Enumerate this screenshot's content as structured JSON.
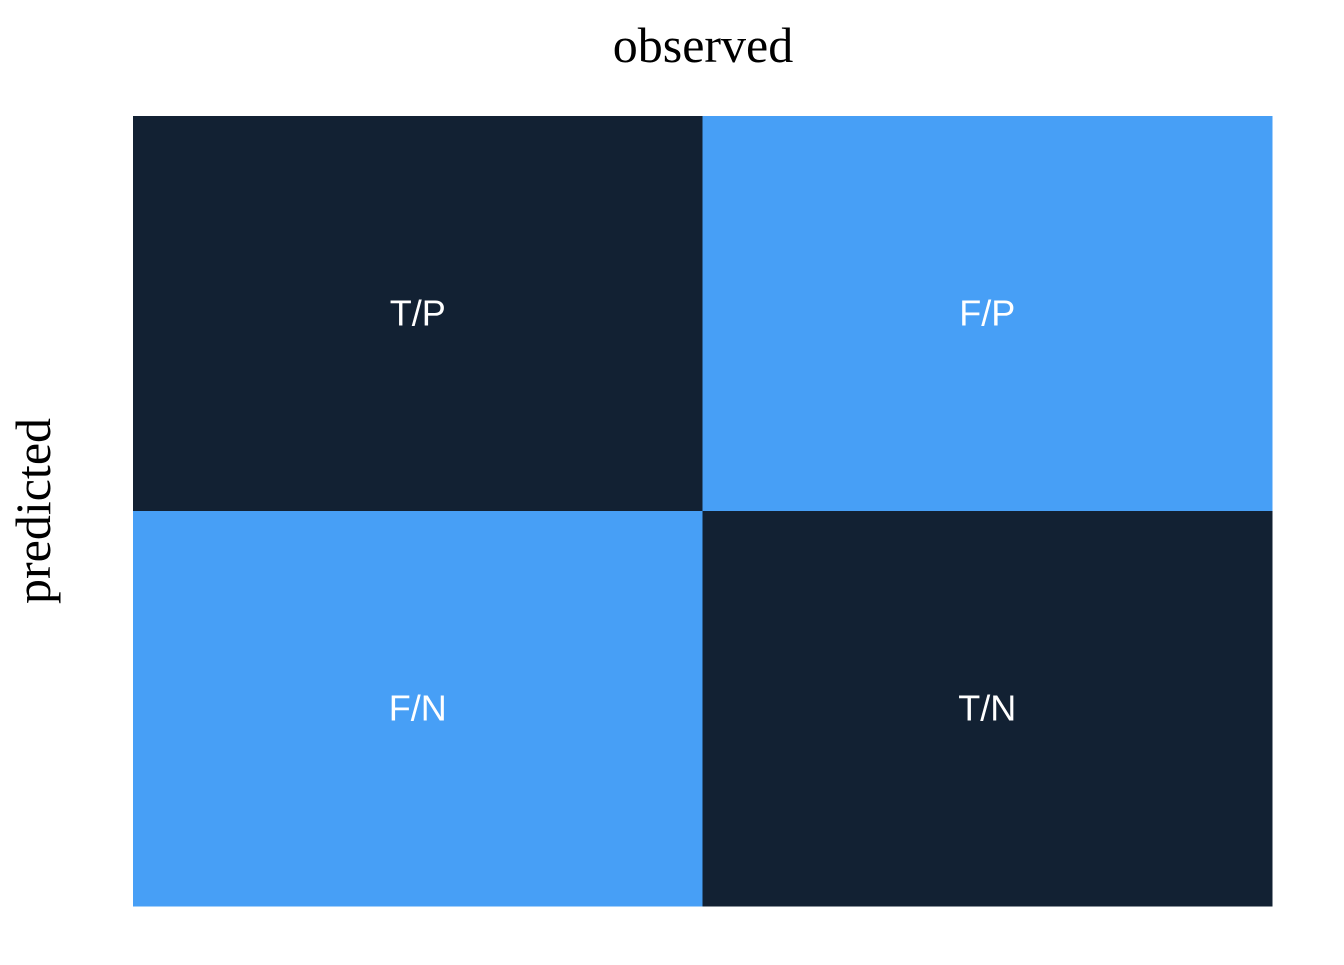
{
  "chart_data": {
    "type": "heatmap",
    "xlabel": "observed",
    "ylabel": "predicted",
    "rows": 2,
    "cols": 2,
    "cells": [
      {
        "row": 0,
        "col": 0,
        "label": "T/P",
        "color": "#122133"
      },
      {
        "row": 0,
        "col": 1,
        "label": "F/P",
        "color": "#479ff6"
      },
      {
        "row": 1,
        "col": 0,
        "label": "F/N",
        "color": "#479ff6"
      },
      {
        "row": 1,
        "col": 1,
        "label": "T/N",
        "color": "#122133"
      }
    ],
    "legend": false,
    "grid": false
  }
}
